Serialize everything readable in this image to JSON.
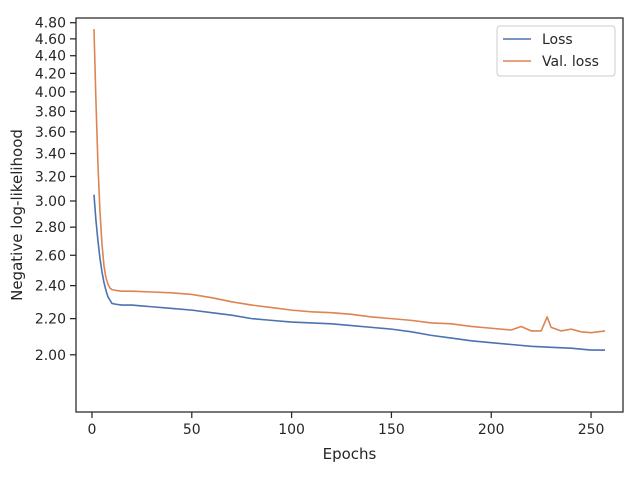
{
  "chart_data": {
    "type": "line",
    "xlabel": "Epochs",
    "ylabel": "Negative log-likelihood",
    "xlim": [
      -8,
      266
    ],
    "ylim": [
      1.72,
      4.86
    ],
    "yscale": "log",
    "xticks": [
      0,
      50,
      100,
      150,
      200,
      250
    ],
    "yticks": [
      2.0,
      2.2,
      2.4,
      2.6,
      2.8,
      3.0,
      3.2,
      3.4,
      3.6,
      3.8,
      4.0,
      4.2,
      4.4,
      4.6,
      4.8
    ],
    "ytick_labels": [
      "2.00",
      "2.20",
      "2.40",
      "2.60",
      "2.80",
      "3.00",
      "3.20",
      "3.40",
      "3.60",
      "3.80",
      "4.00",
      "4.20",
      "4.40",
      "4.60",
      "4.80"
    ],
    "grid": false,
    "legend_position": "top-right",
    "series": [
      {
        "name": "Loss",
        "color": "#4c72b0",
        "x": [
          1,
          2,
          3,
          4,
          5,
          6,
          7,
          8,
          9,
          10,
          12,
          15,
          20,
          25,
          30,
          40,
          50,
          60,
          70,
          80,
          90,
          100,
          110,
          120,
          130,
          140,
          150,
          160,
          170,
          180,
          190,
          200,
          210,
          220,
          230,
          240,
          250,
          257
        ],
        "y": [
          3.05,
          2.85,
          2.7,
          2.58,
          2.49,
          2.42,
          2.37,
          2.33,
          2.31,
          2.29,
          2.285,
          2.28,
          2.28,
          2.275,
          2.27,
          2.26,
          2.25,
          2.235,
          2.22,
          2.2,
          2.19,
          2.18,
          2.175,
          2.17,
          2.16,
          2.15,
          2.14,
          2.125,
          2.105,
          2.09,
          2.075,
          2.065,
          2.055,
          2.045,
          2.04,
          2.035,
          2.025,
          2.025
        ]
      },
      {
        "name": "Val. loss",
        "color": "#dd8452",
        "x": [
          1,
          2,
          3,
          4,
          5,
          6,
          7,
          8,
          9,
          10,
          12,
          15,
          20,
          30,
          40,
          50,
          60,
          70,
          80,
          90,
          100,
          110,
          120,
          130,
          140,
          150,
          160,
          170,
          180,
          190,
          200,
          210,
          215,
          220,
          225,
          228,
          230,
          235,
          240,
          245,
          250,
          257
        ],
        "y": [
          4.72,
          3.9,
          3.3,
          2.92,
          2.68,
          2.53,
          2.45,
          2.41,
          2.385,
          2.375,
          2.37,
          2.365,
          2.365,
          2.36,
          2.355,
          2.345,
          2.325,
          2.3,
          2.28,
          2.265,
          2.25,
          2.24,
          2.235,
          2.225,
          2.21,
          2.2,
          2.19,
          2.175,
          2.17,
          2.155,
          2.145,
          2.135,
          2.155,
          2.13,
          2.13,
          2.21,
          2.15,
          2.13,
          2.14,
          2.125,
          2.12,
          2.13
        ]
      }
    ]
  }
}
